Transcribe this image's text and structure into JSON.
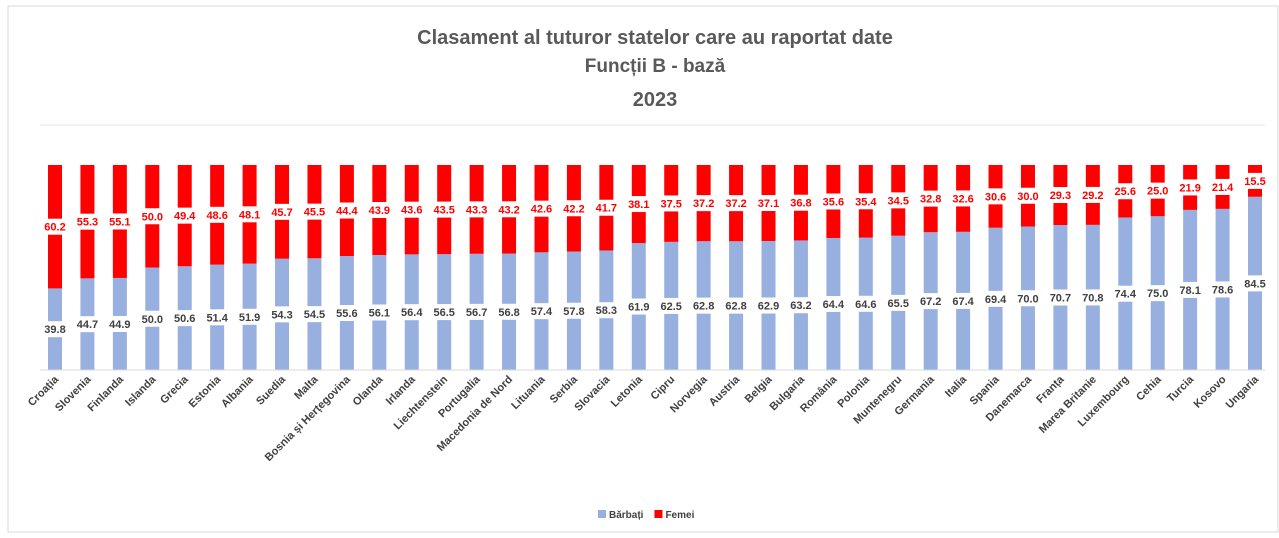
{
  "chart_data": {
    "type": "stacked_bar_100",
    "title": "Clasament al tuturor statelor care au raportat date",
    "subtitle": "Funcții B - bază",
    "year": "2023",
    "categories": [
      "Croația",
      "Slovenia",
      "Finlanda",
      "Islanda",
      "Grecia",
      "Estonia",
      "Albania",
      "Suedia",
      "Malta",
      "Bosnia și Herțegovina",
      "Olanda",
      "Irlanda",
      "Liechtenstein",
      "Portugalia",
      "Macedonia de Nord",
      "Lituania",
      "Serbia",
      "Slovacia",
      "Letonia",
      "Cipru",
      "Norvegia",
      "Austria",
      "Belgia",
      "Bulgaria",
      "România",
      "Polonia",
      "Muntenegru",
      "Germania",
      "Italia",
      "Spania",
      "Danemarca",
      "Franța",
      "Marea Britanie",
      "Luxembourg",
      "Cehia",
      "Turcia",
      "Kosovo",
      "Ungaria"
    ],
    "series": [
      {
        "name": "Bărbați",
        "color": "#98b0e0",
        "values": [
          39.8,
          44.7,
          44.9,
          50,
          50.6,
          51.4,
          51.9,
          54.3,
          54.5,
          55.6,
          56.1,
          56.4,
          56.5,
          56.7,
          56.8,
          57.4,
          57.8,
          58.3,
          61.9,
          62.5,
          62.8,
          62.8,
          62.9,
          63.2,
          64.4,
          64.6,
          65.5,
          67.2,
          67.4,
          69.4,
          70,
          70.7,
          70.8,
          74.4,
          75,
          78.1,
          78.6,
          84.5
        ],
        "value_labels": [
          "39.8",
          "44.7",
          "44.9",
          "50.0",
          "50.6",
          "51.4",
          "51.9",
          "54.3",
          "54.5",
          "55.6",
          "56.1",
          "56.4",
          "56.5",
          "56.7",
          "56.8",
          "57.4",
          "57.8",
          "58.3",
          "61.9",
          "62.5",
          "62.8",
          "62.8",
          "62.9",
          "63.2",
          "64.4",
          "64.6",
          "65.5",
          "67.2",
          "67.4",
          "69.4",
          "70.0",
          "70.7",
          "70.8",
          "74.4",
          "75.0",
          "78.1",
          "78.6",
          "84.5"
        ]
      },
      {
        "name": "Femei",
        "color": "#ff0000",
        "values": [
          60.2,
          55.3,
          55.1,
          50,
          49.4,
          48.6,
          48.1,
          45.7,
          45.5,
          44.4,
          43.9,
          43.6,
          43.5,
          43.3,
          43.2,
          42.6,
          42.2,
          41.7,
          38.1,
          37.5,
          37.2,
          37.2,
          37.1,
          36.8,
          35.6,
          35.4,
          34.5,
          32.8,
          32.6,
          30.6,
          30,
          29.3,
          29.2,
          25.6,
          25,
          21.9,
          21.4,
          15.5
        ],
        "value_labels": [
          "60.2",
          "55.3",
          "55.1",
          "50.0",
          "49.4",
          "48.6",
          "48.1",
          "45.7",
          "45.5",
          "44.4",
          "43.9",
          "43.6",
          "43.5",
          "43.3",
          "43.2",
          "42.6",
          "42.2",
          "41.7",
          "38.1",
          "37.5",
          "37.2",
          "37.2",
          "37.1",
          "36.8",
          "35.6",
          "35.4",
          "34.5",
          "32.8",
          "32.6",
          "30.6",
          "30.0",
          "29.3",
          "29.2",
          "25.6",
          "25.0",
          "21.9",
          "21.4",
          "15.5"
        ]
      }
    ],
    "ylim": [
      0,
      100
    ]
  }
}
